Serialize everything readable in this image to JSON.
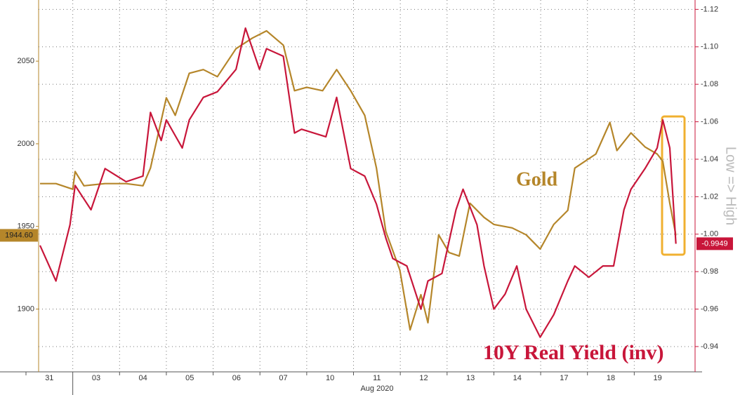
{
  "chart_data": {
    "type": "line",
    "annotations": [
      "Gold",
      "10Y Real Yield (inv)"
    ],
    "y2_label": "Low => High",
    "x_label": "Aug 2020",
    "xlim": [
      0.27,
      14.3
    ],
    "xticks": [
      {
        "value": 0,
        "label": "31"
      },
      {
        "value": 1,
        "label": "03"
      },
      {
        "value": 2,
        "label": "04"
      },
      {
        "value": 3,
        "label": "05"
      },
      {
        "value": 4,
        "label": "06"
      },
      {
        "value": 5,
        "label": "07"
      },
      {
        "value": 6,
        "label": "10"
      },
      {
        "value": 7,
        "label": "11"
      },
      {
        "value": 8,
        "label": "12"
      },
      {
        "value": 9,
        "label": "13"
      },
      {
        "value": 10,
        "label": "14"
      },
      {
        "value": 11,
        "label": "17"
      },
      {
        "value": 12,
        "label": "18"
      },
      {
        "value": 13,
        "label": "19"
      }
    ],
    "ylim": [
      1862,
      2087
    ],
    "yticks": [
      1900,
      1950,
      2000,
      2050
    ],
    "y2lim": [
      -0.9265,
      -1.125
    ],
    "y2ticks": [
      -1.12,
      {
        "value": -1.1,
        "label": "-1.10"
      },
      -1.08,
      -1.06,
      -1.04,
      -1.02,
      {
        "value": -1.0,
        "label": "-1.00"
      },
      -0.98,
      -0.96,
      -0.94
    ],
    "grid": true,
    "series": [
      {
        "name": "Gold",
        "color": "#b5862a",
        "axis": "y",
        "x": [
          0.3,
          0.64,
          1.0,
          1.05,
          1.24,
          1.69,
          2.14,
          2.5,
          2.66,
          3.0,
          3.19,
          3.49,
          3.79,
          4.09,
          4.49,
          4.84,
          5.14,
          5.5,
          5.74,
          6.0,
          6.34,
          6.64,
          6.94,
          7.24,
          7.49,
          7.69,
          7.99,
          8.21,
          8.44,
          8.59,
          8.82,
          9.04,
          9.26,
          9.49,
          9.79,
          10.0,
          10.39,
          10.69,
          10.99,
          11.28,
          11.58,
          11.73,
          12.18,
          12.48,
          12.63,
          12.93,
          13.23,
          13.49,
          13.61,
          13.76,
          13.89
        ],
        "values": [
          1975.9,
          1975.9,
          1972.5,
          1983.2,
          1974.6,
          1975.9,
          1975.9,
          1974.6,
          1985.3,
          2027.8,
          2017.2,
          2042.7,
          2044.9,
          2040.6,
          2057.6,
          2064.0,
          2068.3,
          2059.7,
          2032.1,
          2034.2,
          2032.1,
          2044.9,
          2032.1,
          2017.2,
          1985.3,
          1947.0,
          1923.6,
          1887.4,
          1908.7,
          1891.7,
          1944.9,
          1934.2,
          1932.1,
          1964.0,
          1955.5,
          1951.2,
          1949.1,
          1944.9,
          1936.3,
          1951.2,
          1959.7,
          1985.3,
          1993.8,
          2012.9,
          1995.9,
          2006.6,
          1998.1,
          1993.8,
          1989.5,
          1964.0,
          1944.6
        ],
        "value_labels": [
          null,
          null,
          null,
          null,
          null,
          null,
          null,
          null,
          null,
          null,
          null,
          null,
          null,
          null,
          null,
          null,
          null,
          null,
          null,
          null,
          null,
          null,
          null,
          null,
          null,
          null,
          null,
          null,
          null,
          null,
          null,
          null,
          null,
          null,
          null,
          null,
          null,
          null,
          null,
          null,
          null,
          null,
          null,
          null,
          null,
          null,
          null,
          null,
          null,
          null,
          "1944.60"
        ]
      },
      {
        "name": "10Y Real Yield (inv)",
        "color": "#c8163a",
        "axis": "y2",
        "x": [
          0.3,
          0.64,
          0.94,
          1.05,
          1.39,
          1.69,
          2.14,
          2.5,
          2.66,
          2.89,
          3.0,
          3.34,
          3.49,
          3.79,
          4.09,
          4.49,
          4.69,
          4.99,
          5.14,
          5.5,
          5.74,
          5.89,
          6.41,
          6.64,
          6.94,
          7.24,
          7.49,
          7.69,
          7.84,
          8.14,
          8.44,
          8.59,
          8.89,
          9.19,
          9.34,
          9.64,
          9.79,
          10.0,
          10.24,
          10.49,
          10.69,
          10.99,
          11.28,
          11.58,
          11.73,
          12.03,
          12.33,
          12.56,
          12.78,
          12.93,
          13.23,
          13.49,
          13.61,
          13.76,
          13.89
        ],
        "values": [
          -0.994,
          -0.975,
          -1.005,
          -1.026,
          -1.013,
          -1.035,
          -1.028,
          -1.031,
          -1.065,
          -1.05,
          -1.061,
          -1.046,
          -1.061,
          -1.073,
          -1.076,
          -1.088,
          -1.11,
          -1.088,
          -1.099,
          -1.095,
          -1.054,
          -1.056,
          -1.052,
          -1.073,
          -1.035,
          -1.031,
          -1.016,
          -0.998,
          -0.987,
          -0.983,
          -0.96,
          -0.975,
          -0.979,
          -1.013,
          -1.024,
          -1.005,
          -0.983,
          -0.96,
          -0.968,
          -0.983,
          -0.96,
          -0.945,
          -0.957,
          -0.975,
          -0.983,
          -0.977,
          -0.983,
          -0.983,
          -1.013,
          -1.024,
          -1.035,
          -1.046,
          -1.061,
          -1.046,
          -0.9949
        ],
        "value_labels": [
          null,
          null,
          null,
          null,
          null,
          null,
          null,
          null,
          null,
          null,
          null,
          null,
          null,
          null,
          null,
          null,
          null,
          null,
          null,
          null,
          null,
          null,
          null,
          null,
          null,
          null,
          null,
          null,
          null,
          null,
          null,
          null,
          null,
          null,
          null,
          null,
          null,
          null,
          null,
          null,
          null,
          null,
          null,
          null,
          null,
          null,
          null,
          null,
          null,
          null,
          null,
          null,
          null,
          null,
          "-0.9949"
        ]
      }
    ]
  }
}
